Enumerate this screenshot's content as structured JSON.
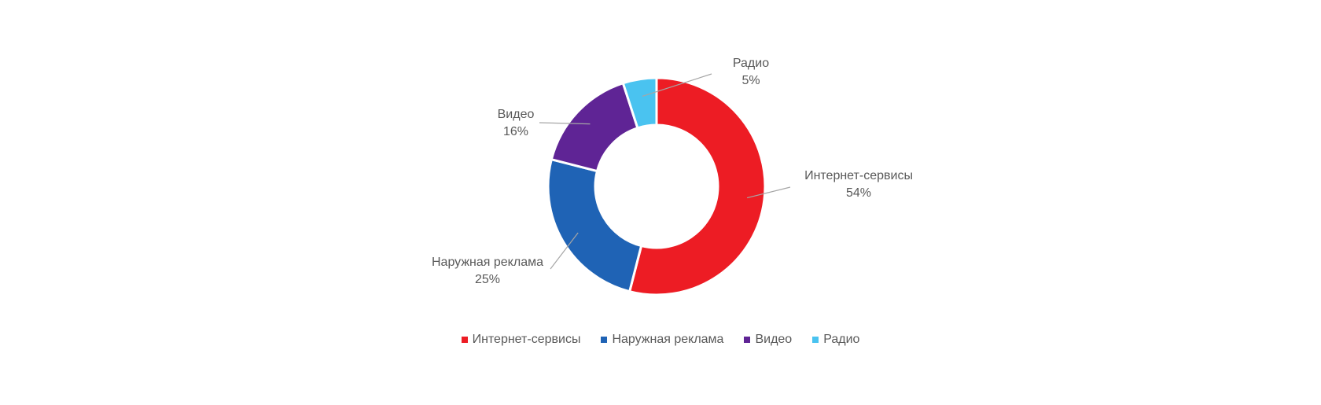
{
  "chart_data": {
    "type": "pie",
    "variant": "donut",
    "title": "",
    "slices": [
      {
        "label": "Интернет-сервисы",
        "value": 54,
        "value_label": "54%",
        "color": "#ED1C24"
      },
      {
        "label": "Наружная реклама",
        "value": 25,
        "value_label": "25%",
        "color": "#1F63B5"
      },
      {
        "label": "Видео",
        "value": 16,
        "value_label": "16%",
        "color": "#5F2495"
      },
      {
        "label": "Радио",
        "value": 5,
        "value_label": "5%",
        "color": "#4AC3F0"
      }
    ],
    "legend_position": "bottom"
  }
}
